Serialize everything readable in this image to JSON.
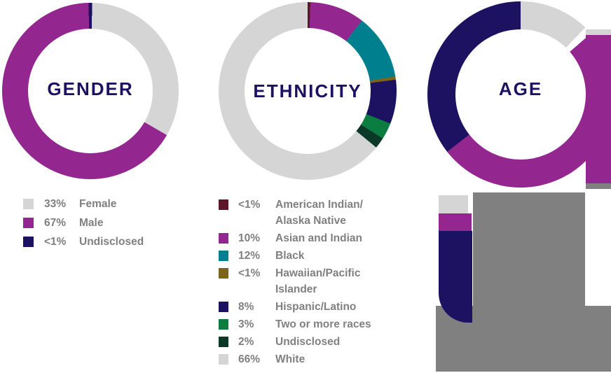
{
  "charts": {
    "gender": {
      "title": "GENDER"
    },
    "ethnicity": {
      "title": "ETHNICITY"
    },
    "age": {
      "title": "AGE"
    }
  },
  "legends": {
    "gender": {
      "items": [
        {
          "pct": "33%",
          "label": "Female",
          "color": "#d5d5d5"
        },
        {
          "pct": "67%",
          "label": "Male",
          "color": "#93278f"
        },
        {
          "pct": "<1%",
          "label": "Undisclosed",
          "color": "#1d1161"
        }
      ]
    },
    "ethnicity": {
      "items": [
        {
          "pct": "<1%",
          "label": "American Indian/",
          "label2": "Alaska Native",
          "color": "#5e1728"
        },
        {
          "pct": "10%",
          "label": "Asian and Indian",
          "color": "#93278f"
        },
        {
          "pct": "12%",
          "label": "Black",
          "color": "#00808e"
        },
        {
          "pct": "<1%",
          "label": "Hawaiian/Pacific",
          "label2": "Islander",
          "color": "#7d6419"
        },
        {
          "pct": "8%",
          "label": "Hispanic/Latino",
          "color": "#1d1161"
        },
        {
          "pct": "3%",
          "label": "Two or more races",
          "color": "#0c7d40"
        },
        {
          "pct": "2%",
          "label": "Undisclosed",
          "color": "#0a3a27"
        },
        {
          "pct": "66%",
          "label": "White",
          "color": "#d5d5d5"
        }
      ]
    },
    "age": {
      "covered_by_gray_box": true,
      "visible_swatch_colors": [
        "#d5d5d5",
        "#93278f",
        "#1d1161"
      ]
    }
  },
  "colors": {
    "purple": "#93278f",
    "navy": "#1d1161",
    "light_gray": "#d5d5d5",
    "overlay_gray": "#808080",
    "maroon": "#5e1728",
    "teal": "#00808e",
    "gold": "#7d6419",
    "green": "#0c7d40",
    "dark_green": "#0a3a27",
    "title_text": "#1d1161",
    "legend_text": "#808080"
  },
  "chart_data": [
    {
      "type": "pie",
      "subtype": "donut",
      "title": "GENDER",
      "categories": [
        "Female",
        "Male",
        "Undisclosed"
      ],
      "values": [
        33,
        67,
        0.5
      ],
      "value_labels": [
        "33%",
        "67%",
        "<1%"
      ],
      "colors": [
        "#d5d5d5",
        "#93278f",
        "#1d1161"
      ],
      "legend_position": "bottom-left"
    },
    {
      "type": "pie",
      "subtype": "donut",
      "title": "ETHNICITY",
      "categories": [
        "American Indian/Alaska Native",
        "Asian and Indian",
        "Black",
        "Hawaiian/Pacific Islander",
        "Hispanic/Latino",
        "Two or more races",
        "Undisclosed",
        "White"
      ],
      "values": [
        0.5,
        10,
        12,
        0.5,
        8,
        3,
        2,
        66
      ],
      "value_labels": [
        "<1%",
        "10%",
        "12%",
        "<1%",
        "8%",
        "3%",
        "2%",
        "66%"
      ],
      "colors": [
        "#5e1728",
        "#93278f",
        "#00808e",
        "#7d6419",
        "#1d1161",
        "#0c7d40",
        "#0a3a27",
        "#d5d5d5"
      ],
      "legend_position": "bottom-left"
    },
    {
      "type": "pie",
      "subtype": "donut",
      "title": "AGE",
      "categories": [
        "",
        "",
        ""
      ],
      "values": [
        12,
        51,
        35
      ],
      "values_note": "estimated from arc angles; legend text hidden behind gray overlay box",
      "colors": [
        "#d5d5d5",
        "#93278f",
        "#1d1161"
      ],
      "legend_position": "bottom-left"
    }
  ]
}
